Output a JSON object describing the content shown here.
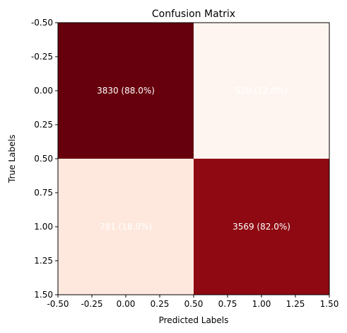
{
  "chart_data": {
    "type": "heatmap",
    "title": "Confusion Matrix",
    "xlabel": "Predicted Labels",
    "ylabel": "True Labels",
    "xlim": [
      -0.5,
      1.5
    ],
    "ylim": [
      1.5,
      -0.5
    ],
    "xticks": [
      "-0.50",
      "-0.25",
      "0.00",
      "0.25",
      "0.50",
      "0.75",
      "1.00",
      "1.25",
      "1.50"
    ],
    "yticks": [
      "-0.50",
      "-0.25",
      "0.00",
      "0.25",
      "0.50",
      "0.75",
      "1.00",
      "1.25",
      "1.50"
    ],
    "matrix": [
      [
        3830,
        520
      ],
      [
        781,
        3569
      ]
    ],
    "cell_labels": [
      [
        "3830 (88.0%)",
        "520 (12.0%)"
      ],
      [
        "781 (18.0%)",
        "3569 (82.0%)"
      ]
    ],
    "colormap": "Reds",
    "colors": {
      "max": "#67000d",
      "high": "#8b0a14",
      "low": "#fde2d6",
      "min": "#fff5f0",
      "label_text": "#ffffff"
    },
    "grid": false,
    "legend": false
  }
}
